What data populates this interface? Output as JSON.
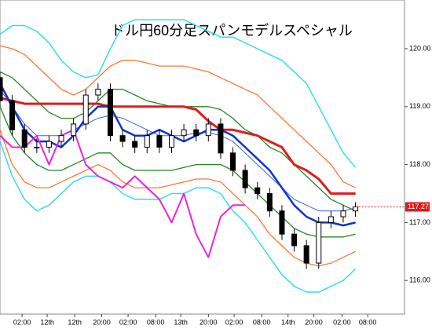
{
  "chart_data": {
    "type": "candlestick",
    "title": "ドル円60分足スパンモデルスペシャル",
    "xlim": [
      0,
      33
    ],
    "ylim": [
      115.42,
      120.84
    ],
    "xticks": [
      {
        "value": 1.8,
        "label": "02:00"
      },
      {
        "value": 3.85,
        "label": "12th"
      },
      {
        "value": 6.1,
        "label": "12th"
      },
      {
        "value": 8.3,
        "label": "20:00"
      },
      {
        "value": 10.45,
        "label": "02:00"
      },
      {
        "value": 12.7,
        "label": "08:00"
      },
      {
        "value": 14.75,
        "label": "13th"
      },
      {
        "value": 17,
        "label": "20:00"
      },
      {
        "value": 19.1,
        "label": "02:00"
      },
      {
        "value": 21.35,
        "label": "08:00"
      },
      {
        "value": 23.5,
        "label": "14th"
      },
      {
        "value": 25.6,
        "label": "20:00"
      },
      {
        "value": 27.9,
        "label": "02:00"
      },
      {
        "value": 30,
        "label": "08:00"
      }
    ],
    "yticks": [
      {
        "value": 116,
        "label": "116.00"
      },
      {
        "value": 117,
        "label": "117.00"
      },
      {
        "value": 118,
        "label": "118.00"
      },
      {
        "value": 119,
        "label": "119.00"
      },
      {
        "value": 120,
        "label": "120.00"
      }
    ],
    "last_price": {
      "value": 117.27,
      "label": "117.27",
      "color": "#e21b1b"
    },
    "x": [
      0,
      1,
      2,
      3,
      4,
      5,
      6,
      7,
      8,
      9,
      10,
      11,
      12,
      13,
      14,
      15,
      16,
      17,
      18,
      19,
      20,
      21,
      22,
      23,
      24,
      25,
      26,
      27,
      28,
      29
    ],
    "candles": {
      "open": [
        119.5,
        119.1,
        118.6,
        118.3,
        118.3,
        118.4,
        118.5,
        118.7,
        119.2,
        119.3,
        118.5,
        118.4,
        118.3,
        118.5,
        118.3,
        118.5,
        118.6,
        118.5,
        118.7,
        118.2,
        117.9,
        117.6,
        117.5,
        117.2,
        116.8,
        116.6,
        116.3,
        117.0,
        117.1,
        117.2
      ],
      "high": [
        119.6,
        119.2,
        118.7,
        118.45,
        118.5,
        118.6,
        118.8,
        119.3,
        119.4,
        119.4,
        118.6,
        118.5,
        118.6,
        118.6,
        118.6,
        118.7,
        118.7,
        118.8,
        118.8,
        118.3,
        118.0,
        117.7,
        117.6,
        117.3,
        116.9,
        116.7,
        117.1,
        117.2,
        117.3,
        117.35
      ],
      "low": [
        119.0,
        118.5,
        118.2,
        118.2,
        118.2,
        118.3,
        118.4,
        118.6,
        119.1,
        118.4,
        118.3,
        118.2,
        118.2,
        118.2,
        118.2,
        118.4,
        118.4,
        118.4,
        118.1,
        117.8,
        117.5,
        117.4,
        117.1,
        116.7,
        116.5,
        116.2,
        116.2,
        116.9,
        117.0,
        117.1
      ],
      "close": [
        119.1,
        118.6,
        118.3,
        118.3,
        118.4,
        118.5,
        118.7,
        119.2,
        119.3,
        118.5,
        118.4,
        118.3,
        118.5,
        118.3,
        118.5,
        118.6,
        118.5,
        118.7,
        118.2,
        117.9,
        117.6,
        117.5,
        117.2,
        116.8,
        116.6,
        116.3,
        117.0,
        117.1,
        117.2,
        117.27
      ]
    },
    "series": [
      {
        "color": "#33ddee",
        "width": 1.5,
        "values": [
          120.25,
          120.4,
          120.4,
          120.3,
          120.1,
          119.8,
          119.6,
          119.5,
          119.55,
          120.0,
          120.4,
          120.5,
          120.5,
          120.5,
          120.5,
          120.5,
          120.4,
          120.3,
          120.2,
          120.2,
          120.1,
          120.0,
          119.9,
          119.8,
          119.6,
          119.4,
          119.0,
          118.6,
          118.2,
          117.95
        ]
      },
      {
        "color": "#ff7733",
        "width": 1.3,
        "values": [
          120.05,
          120.0,
          119.9,
          119.7,
          119.5,
          119.3,
          119.2,
          119.3,
          119.5,
          119.7,
          119.8,
          119.8,
          119.75,
          119.7,
          119.7,
          119.7,
          119.65,
          119.6,
          119.5,
          119.4,
          119.3,
          119.2,
          119.0,
          118.8,
          118.6,
          118.4,
          118.2,
          118.0,
          117.7,
          117.6
        ]
      },
      {
        "color": "#228822",
        "width": 1.3,
        "values": [
          119.6,
          119.5,
          119.3,
          119.1,
          118.9,
          118.8,
          118.8,
          118.9,
          119.1,
          119.3,
          119.3,
          119.2,
          119.1,
          119.05,
          119.0,
          119.0,
          119.0,
          119.0,
          118.95,
          118.8,
          118.6,
          118.5,
          118.3,
          118.2,
          118.0,
          117.8,
          117.6,
          117.4,
          117.3,
          117.2
        ]
      },
      {
        "color": "#3366ee",
        "width": 1,
        "values": [
          119.3,
          119.0,
          118.7,
          118.5,
          118.5,
          118.5,
          118.6,
          118.7,
          118.8,
          118.85,
          118.8,
          118.7,
          118.6,
          118.5,
          118.5,
          118.5,
          118.55,
          118.55,
          118.5,
          118.4,
          118.2,
          118.0,
          117.8,
          117.6,
          117.4,
          117.3,
          117.2,
          117.2,
          117.2,
          117.25
        ]
      },
      {
        "color": "#228822",
        "width": 1.3,
        "values": [
          119.0,
          118.5,
          118.2,
          118.0,
          117.9,
          117.9,
          118.0,
          118.1,
          118.2,
          118.2,
          118.0,
          117.9,
          117.9,
          117.9,
          117.9,
          117.95,
          118.0,
          118.0,
          118.0,
          117.9,
          117.7,
          117.5,
          117.3,
          117.1,
          116.9,
          116.8,
          116.75,
          116.75,
          116.75,
          116.8
        ]
      },
      {
        "color": "#ff7733",
        "width": 1.3,
        "values": [
          118.6,
          118.0,
          117.7,
          117.6,
          117.6,
          117.7,
          117.8,
          117.9,
          118.0,
          117.9,
          117.7,
          117.6,
          117.6,
          117.6,
          117.65,
          117.7,
          117.75,
          117.75,
          117.7,
          117.5,
          117.3,
          117.1,
          116.8,
          116.6,
          116.4,
          116.3,
          116.25,
          116.3,
          116.4,
          116.5
        ]
      },
      {
        "color": "#33ddee",
        "width": 1.5,
        "values": [
          118.4,
          117.8,
          117.4,
          117.2,
          117.3,
          117.5,
          117.7,
          117.8,
          117.8,
          117.7,
          117.5,
          117.4,
          117.4,
          117.4,
          117.5,
          117.5,
          117.6,
          117.6,
          117.5,
          117.2,
          117.0,
          116.7,
          116.4,
          116.1,
          115.9,
          115.8,
          115.8,
          115.9,
          116.0,
          116.2
        ]
      },
      {
        "color": "#e21b1b",
        "width": 3,
        "values": [
          119.15,
          119.1,
          119.05,
          119.05,
          119.05,
          119.05,
          119.05,
          119.05,
          119.05,
          119.0,
          119.0,
          119.0,
          119.0,
          119.0,
          119.0,
          119.0,
          118.95,
          118.75,
          118.6,
          118.6,
          118.55,
          118.5,
          118.4,
          118.3,
          118.0,
          117.9,
          117.75,
          117.5,
          117.5,
          117.5
        ]
      },
      {
        "color": "#1133cc",
        "width": 2.5,
        "values": [
          119.4,
          119.0,
          118.6,
          118.4,
          118.4,
          118.3,
          118.5,
          118.8,
          119.0,
          119.0,
          118.6,
          118.5,
          118.5,
          118.6,
          118.5,
          118.4,
          118.5,
          118.6,
          118.6,
          118.5,
          118.3,
          118.1,
          117.9,
          117.6,
          117.3,
          117.1,
          117.0,
          117.0,
          116.95,
          117.0
        ]
      },
      {
        "color": "#ee22dd",
        "width": 2,
        "values": [
          118.5,
          118.3,
          118.3,
          118.5,
          118.0,
          118.5,
          118.6,
          118.0,
          117.8,
          117.7,
          117.6,
          117.8,
          117.6,
          117.4,
          117.0,
          117.5,
          116.8,
          116.4,
          117.1,
          117.3,
          117.3,
          null,
          null,
          null,
          null,
          null,
          null,
          null,
          null,
          null
        ]
      }
    ]
  }
}
